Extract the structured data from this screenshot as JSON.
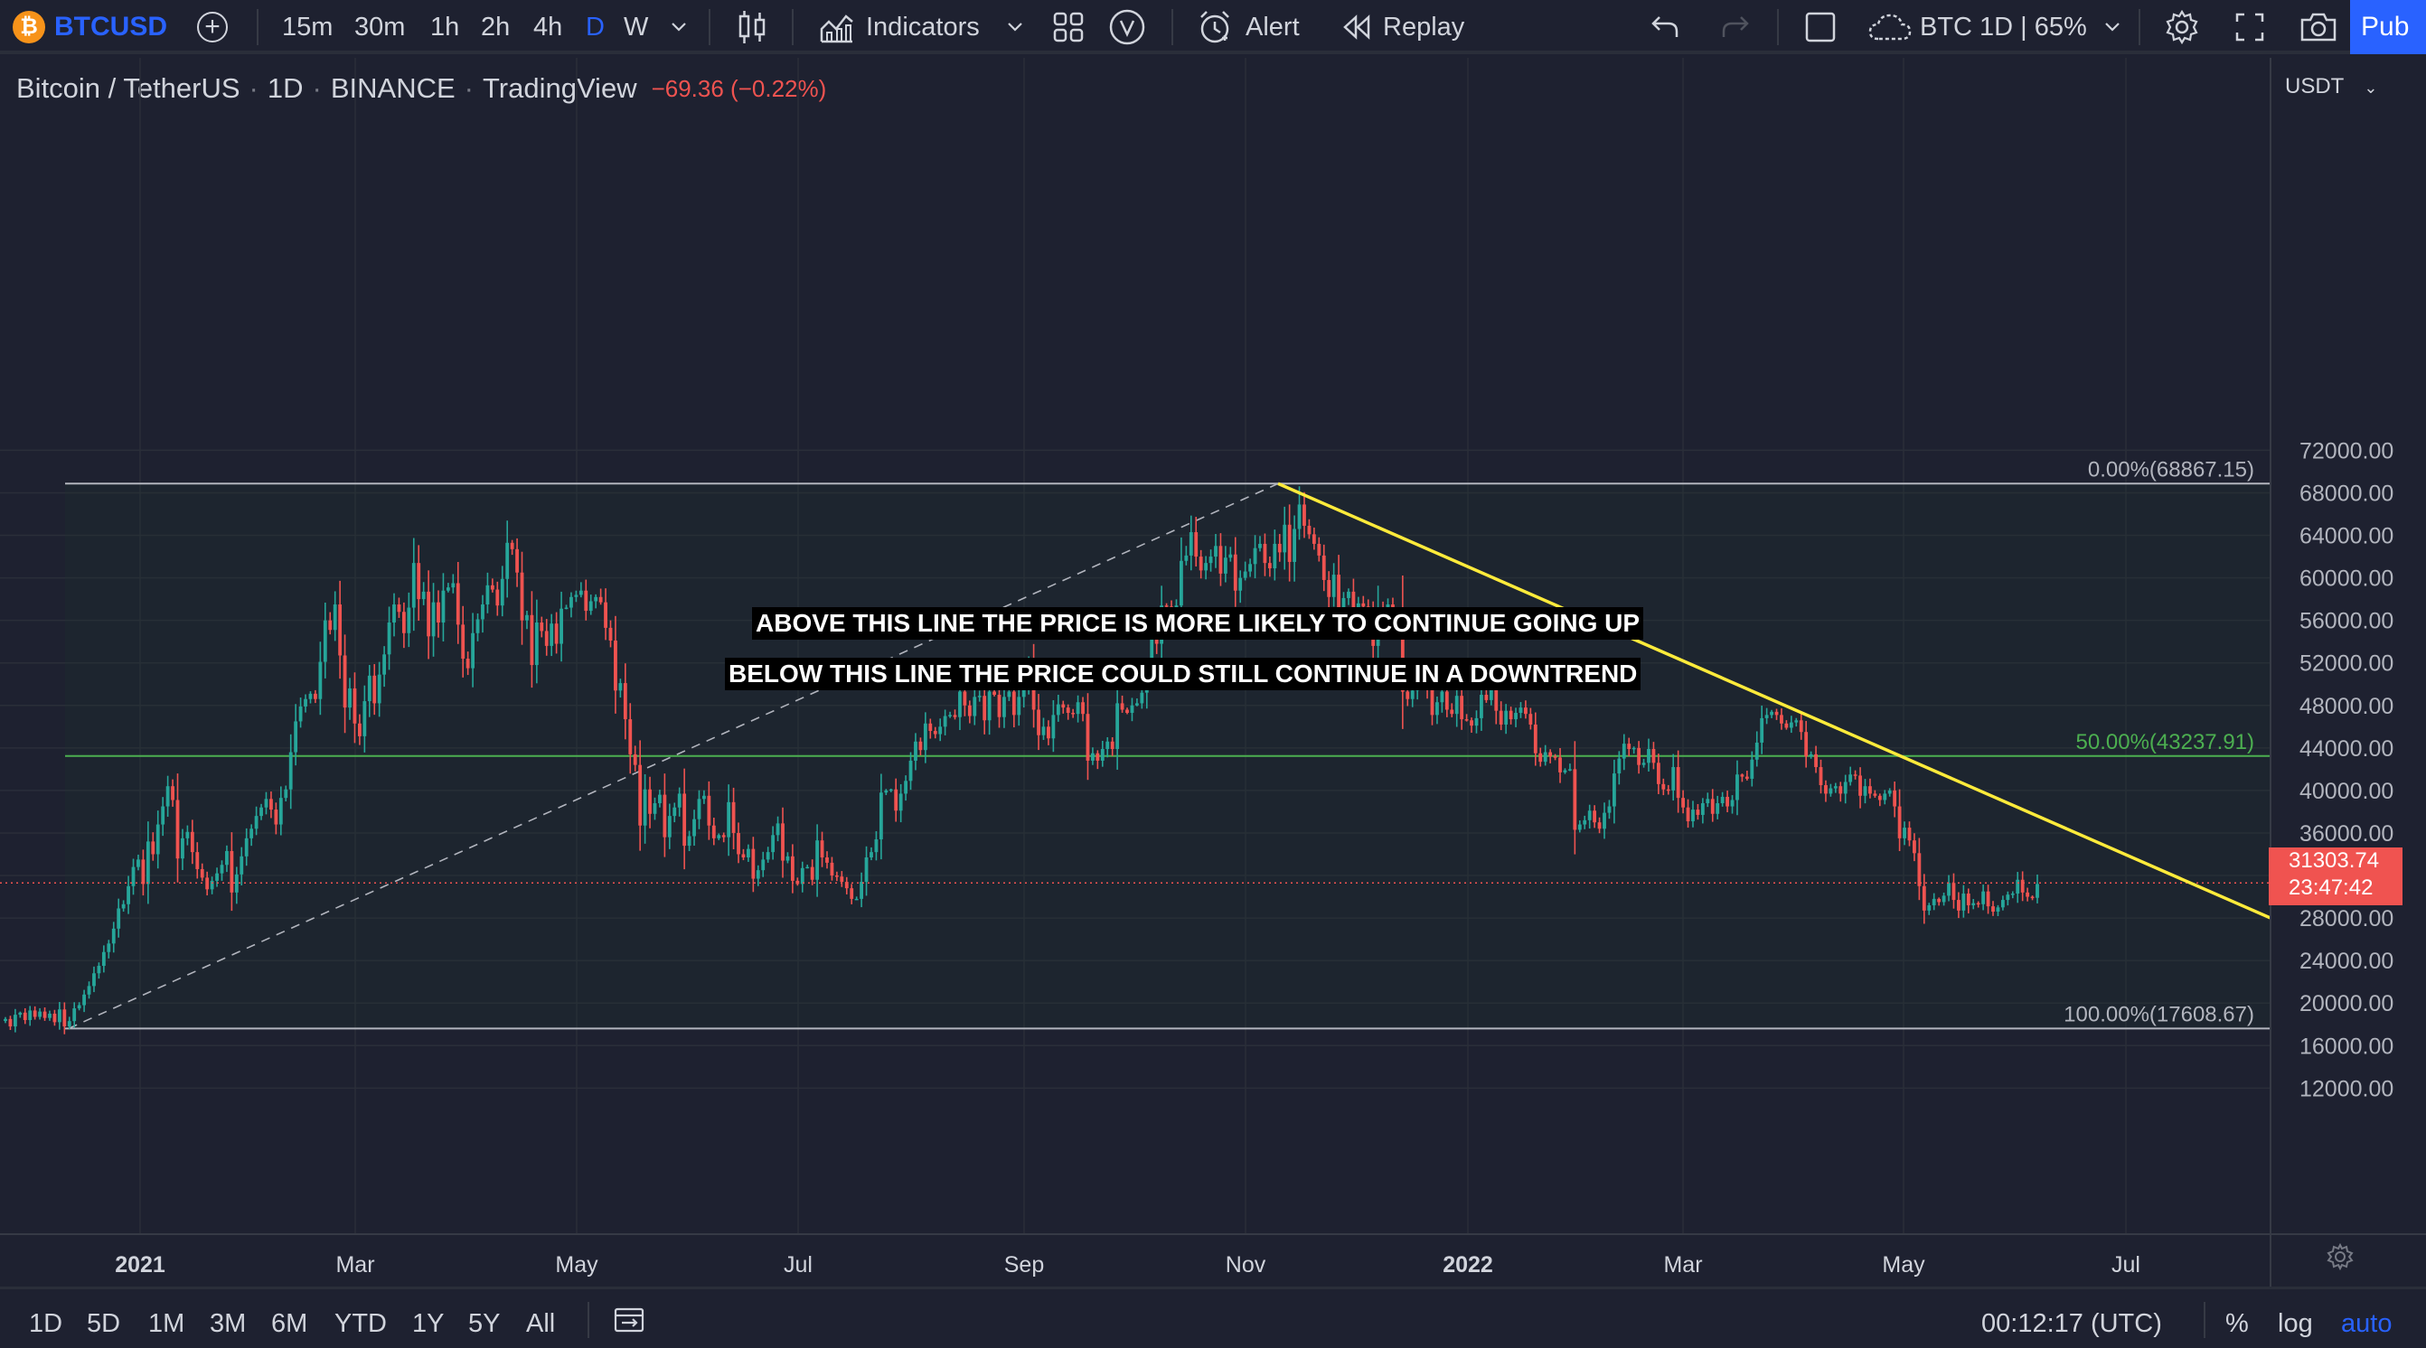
{
  "toolbar": {
    "symbol": "BTCUSD",
    "logo_glyph": "₿",
    "add_symbol_glyph": "+",
    "intervals": [
      "15m",
      "30m",
      "1h",
      "2h",
      "4h",
      "D",
      "W"
    ],
    "active_interval": "D",
    "indicators_label": "Indicators",
    "alert_label": "Alert",
    "replay_label": "Replay",
    "layout_name": "BTC 1D | 65%",
    "publish_label": "Pub"
  },
  "legend": {
    "pair": "Bitcoin / TetherUS",
    "interval": "1D",
    "exchange": "BINANCE",
    "source": "TradingView",
    "change": "−69.36 (−0.22%)"
  },
  "annotations": {
    "above": "ABOVE THIS LINE THE PRICE IS MORE LIKELY TO CONTINUE GOING UP",
    "below": "BELOW THIS LINE THE PRICE COULD STILL CONTINUE IN A DOWNTREND"
  },
  "price_tag": {
    "price": "31303.74",
    "countdown": "23:47:42"
  },
  "chart_data": {
    "type": "candlestick",
    "symbol": "BTCUSDT",
    "currency": "USDT",
    "ylim": [
      10000,
      74000
    ],
    "y_ticks": [
      "72000.00",
      "68000.00",
      "64000.00",
      "60000.00",
      "56000.00",
      "52000.00",
      "48000.00",
      "44000.00",
      "40000.00",
      "36000.00",
      "32000.00",
      "28000.00",
      "24000.00",
      "20000.00",
      "16000.00",
      "12000.00"
    ],
    "x_ticks": [
      "2021",
      "Mar",
      "May",
      "Jul",
      "Sep",
      "Nov",
      "2022",
      "Mar",
      "May",
      "Jul"
    ],
    "x_bold": [
      "2021",
      "2022"
    ],
    "fib_levels": [
      {
        "label": "0.00%(68867.15)",
        "value": 68867.15,
        "color": "#b2b5be"
      },
      {
        "label": "50.00%(43237.91)",
        "value": 43237.91,
        "color": "#4caf50"
      },
      {
        "label": "100.00%(17608.67)",
        "value": 17608.67,
        "color": "#b2b5be"
      }
    ],
    "last_price": 31303.74,
    "close_series_day_step": 1,
    "close_series": [
      18500,
      17800,
      18900,
      19100,
      18400,
      19300,
      18700,
      19200,
      18600,
      19000,
      18200,
      19400,
      17800,
      18300,
      19500,
      19800,
      20800,
      21600,
      22800,
      23500,
      24800,
      25600,
      27000,
      28900,
      29300,
      31000,
      32800,
      33500,
      31200,
      35200,
      34000,
      36800,
      38500,
      40400,
      39100,
      33600,
      35500,
      36100,
      34200,
      32600,
      31800,
      30700,
      31500,
      32200,
      33000,
      34300,
      30400,
      32100,
      33800,
      35500,
      36400,
      37600,
      38400,
      39200,
      38200,
      36800,
      39300,
      40100,
      43600,
      46500,
      47900,
      48600,
      49100,
      48600,
      52100,
      56000,
      55100,
      57500,
      52700,
      47800,
      49600,
      46300,
      45100,
      48400,
      50800,
      48200,
      50900,
      52800,
      55800,
      57500,
      56800,
      54800,
      57200,
      61400,
      58000,
      58700,
      54500,
      57700,
      55800,
      58800,
      59100,
      59500,
      55600,
      52400,
      51500,
      54800,
      56100,
      57500,
      59300,
      58900,
      57400,
      59900,
      63300,
      62700,
      60500,
      56000,
      56500,
      51800,
      55800,
      55000,
      53600,
      55700,
      53800,
      57100,
      57200,
      58200,
      58400,
      58800,
      56900,
      57800,
      58200,
      57700,
      55300,
      54100,
      49400,
      50100,
      46700,
      43400,
      42400,
      36700,
      40100,
      37800,
      38800,
      39600,
      35600,
      37600,
      38400,
      39700,
      34800,
      35700,
      37300,
      39200,
      39500,
      36700,
      35500,
      35800,
      35600,
      38900,
      36000,
      34000,
      33700,
      34500,
      31700,
      32500,
      33500,
      34200,
      35800,
      36900,
      33400,
      33800,
      31500,
      31200,
      32700,
      32800,
      31600,
      35300,
      33700,
      33200,
      32000,
      31900,
      31400,
      30800,
      29800,
      29800,
      31400,
      33700,
      34200,
      35400,
      39800,
      40000,
      40100,
      38100,
      39700,
      40900,
      42800,
      44600,
      43800,
      46300,
      45600,
      45300,
      46000,
      47000,
      47100,
      46900,
      49300,
      48000,
      47000,
      48800,
      48900,
      46600,
      49300,
      49000,
      46900,
      48800,
      49300,
      47100,
      48800,
      50100,
      51700,
      47600,
      45200,
      46000,
      44900,
      47100,
      48100,
      47800,
      47300,
      47200,
      48300,
      47200,
      42800,
      43500,
      42800,
      43900,
      44600,
      43900,
      48200,
      47600,
      47300,
      48000,
      48200,
      49200,
      51400,
      55300,
      53800,
      57400,
      57300,
      56000,
      57400,
      61600,
      62100,
      64300,
      62000,
      60700,
      61400,
      62000,
      63000,
      60400,
      61900,
      62200,
      58800,
      60000,
      60600,
      61300,
      62800,
      63200,
      61400,
      60900,
      63200,
      62400,
      65000,
      61500,
      64600,
      66900,
      64900,
      64100,
      63200,
      62100,
      59800,
      58200,
      60300,
      56800,
      58100,
      58700,
      56200,
      57600,
      57300,
      56300,
      53600,
      57200,
      56200,
      57500,
      57000,
      56800,
      49300,
      48600,
      49400,
      50400,
      50600,
      49500,
      47100,
      48300,
      49300,
      47600,
      47200,
      48900,
      46700,
      46600,
      46100,
      46800,
      49000,
      48500,
      49500,
      47500,
      46200,
      47500,
      46700,
      47300,
      47800,
      47200,
      46200,
      43500,
      42700,
      43600,
      43200,
      43100,
      41700,
      41900,
      42000,
      36300,
      36800,
      37200,
      38100,
      37000,
      36400,
      37900,
      38500,
      41600,
      43000,
      44400,
      43900,
      44000,
      42400,
      42600,
      43900,
      42600,
      40600,
      40100,
      40000,
      42200,
      39300,
      38400,
      37100,
      38200,
      37700,
      38800,
      39200,
      37800,
      38800,
      39400,
      38500,
      39100,
      41500,
      41300,
      41100,
      42900,
      44500,
      46800,
      47100,
      47400,
      47100,
      46300,
      45900,
      46400,
      46600,
      45500,
      43200,
      43400,
      42200,
      40500,
      39700,
      40200,
      40400,
      39700,
      40800,
      41500,
      41400,
      39500,
      40400,
      39700,
      39500,
      39100,
      39700,
      40000,
      38500,
      35500,
      36500,
      35300,
      34100,
      31000,
      28700,
      29200,
      29800,
      29500,
      30100,
      31300,
      29700,
      28700,
      30300,
      29200,
      29400,
      29300,
      30500,
      29100,
      28600,
      29000,
      29700,
      30200,
      30300,
      31600,
      30400,
      30000,
      29900,
      31200
    ]
  },
  "bottombar": {
    "ranges": [
      "1D",
      "5D",
      "1M",
      "3M",
      "6M",
      "YTD",
      "1Y",
      "5Y",
      "All"
    ],
    "clock": "00:12:17 (UTC)",
    "percent_label": "%",
    "log_label": "log",
    "auto_label": "auto"
  },
  "colors": {
    "up": "#26a69a",
    "down": "#ef5350",
    "trendline": "#ffeb3b",
    "accent": "#2962ff",
    "price_tag": "#f05350"
  },
  "icons": [
    "bitcoin-icon",
    "add-symbol-icon",
    "chevron-down-icon",
    "candles-icon",
    "indicators-icon",
    "templates-icon",
    "volume-profile-icon",
    "alert-icon",
    "replay-icon",
    "undo-icon",
    "redo-icon",
    "layout-icon",
    "cloud-icon",
    "settings-icon",
    "fullscreen-icon",
    "camera-icon",
    "date-range-icon",
    "gear-icon"
  ]
}
